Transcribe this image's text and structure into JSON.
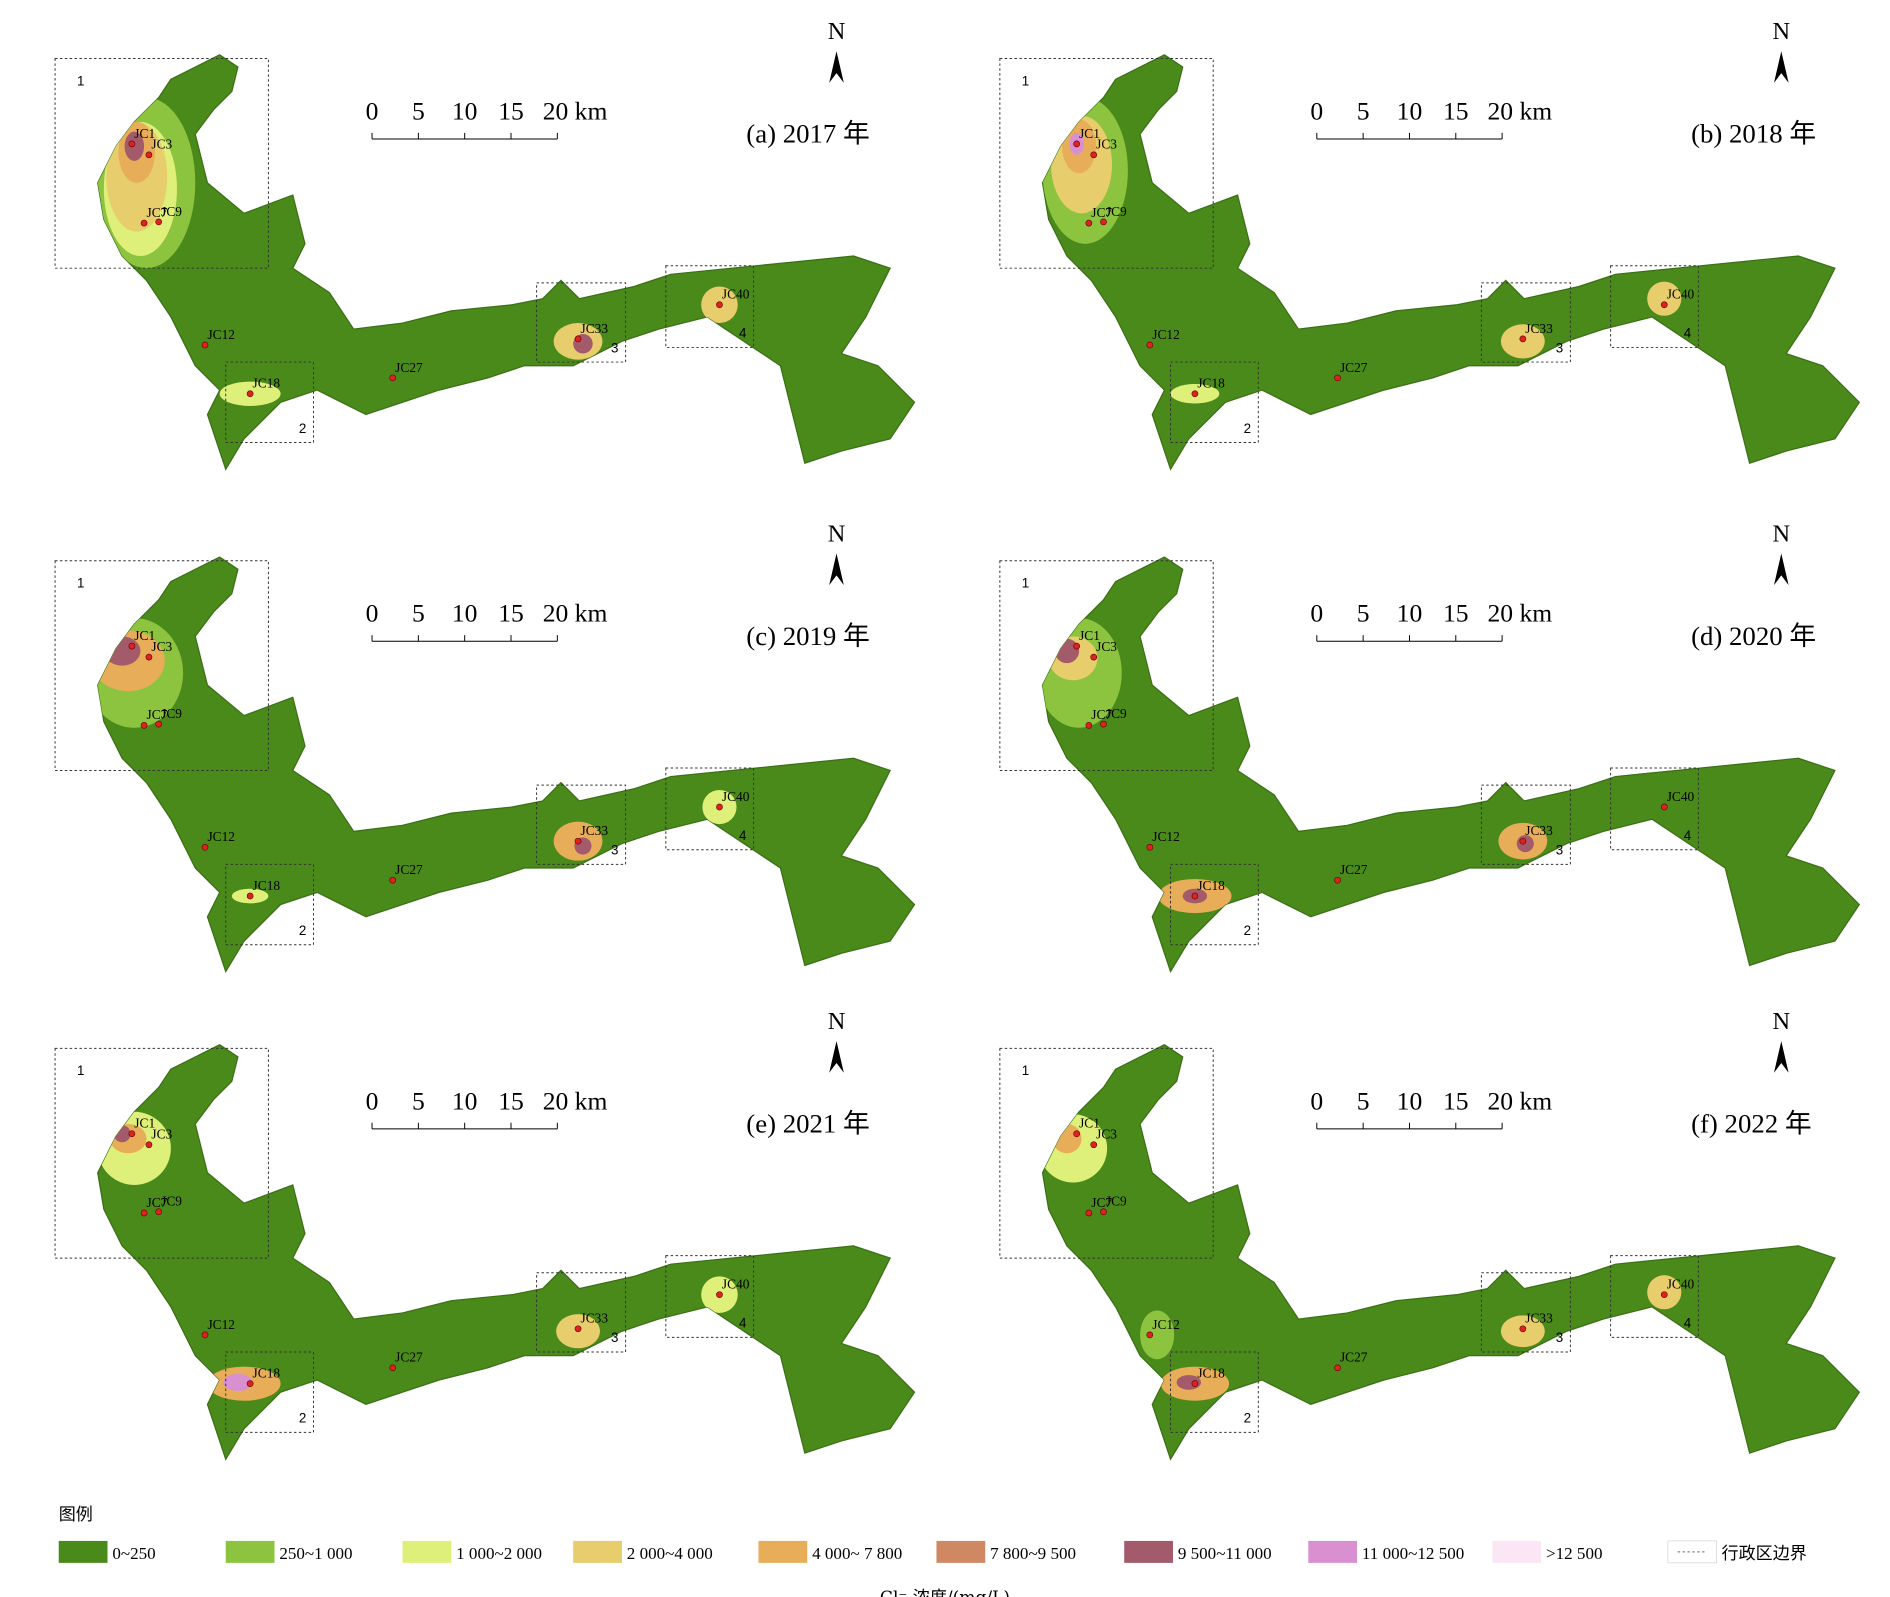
{
  "panels": [
    {
      "title": "(a) 2017 年"
    },
    {
      "title": "(b) 2018 年"
    },
    {
      "title": "(c) 2019 年"
    },
    {
      "title": "(d) 2020 年"
    },
    {
      "title": "(e) 2021 年"
    },
    {
      "title": "(f) 2022 年"
    }
  ],
  "stations": [
    "JC1",
    "JC3",
    "JC7",
    "JC9",
    "JC12",
    "JC18",
    "JC27",
    "JC33",
    "JC40"
  ],
  "boxes": [
    "1",
    "2",
    "3",
    "4"
  ],
  "north": "N",
  "scale_labels": [
    "0",
    "5",
    "10",
    "15",
    "20 km"
  ],
  "legend": {
    "title": "图例",
    "items": [
      {
        "label": "0~250",
        "color": "#4a8a1a"
      },
      {
        "label": "250~1 000",
        "color": "#8cc43f"
      },
      {
        "label": "1 000~2 000",
        "color": "#def07a"
      },
      {
        "label": "2 000~4 000",
        "color": "#e8cd6c"
      },
      {
        "label": "4 000~ 7 800",
        "color": "#e8ad58"
      },
      {
        "label": "7 800~9 500",
        "color": "#d08862"
      },
      {
        "label": "9 500~11 000",
        "color": "#a35a6a"
      },
      {
        "label": "11 000~12 500",
        "color": "#d890d0"
      },
      {
        "label": ">12 500",
        "color": "#fbe6f6"
      }
    ],
    "boundary": "行政区边界"
  },
  "axis_label": "Cl⁻ 浓度/(mg/L)"
}
